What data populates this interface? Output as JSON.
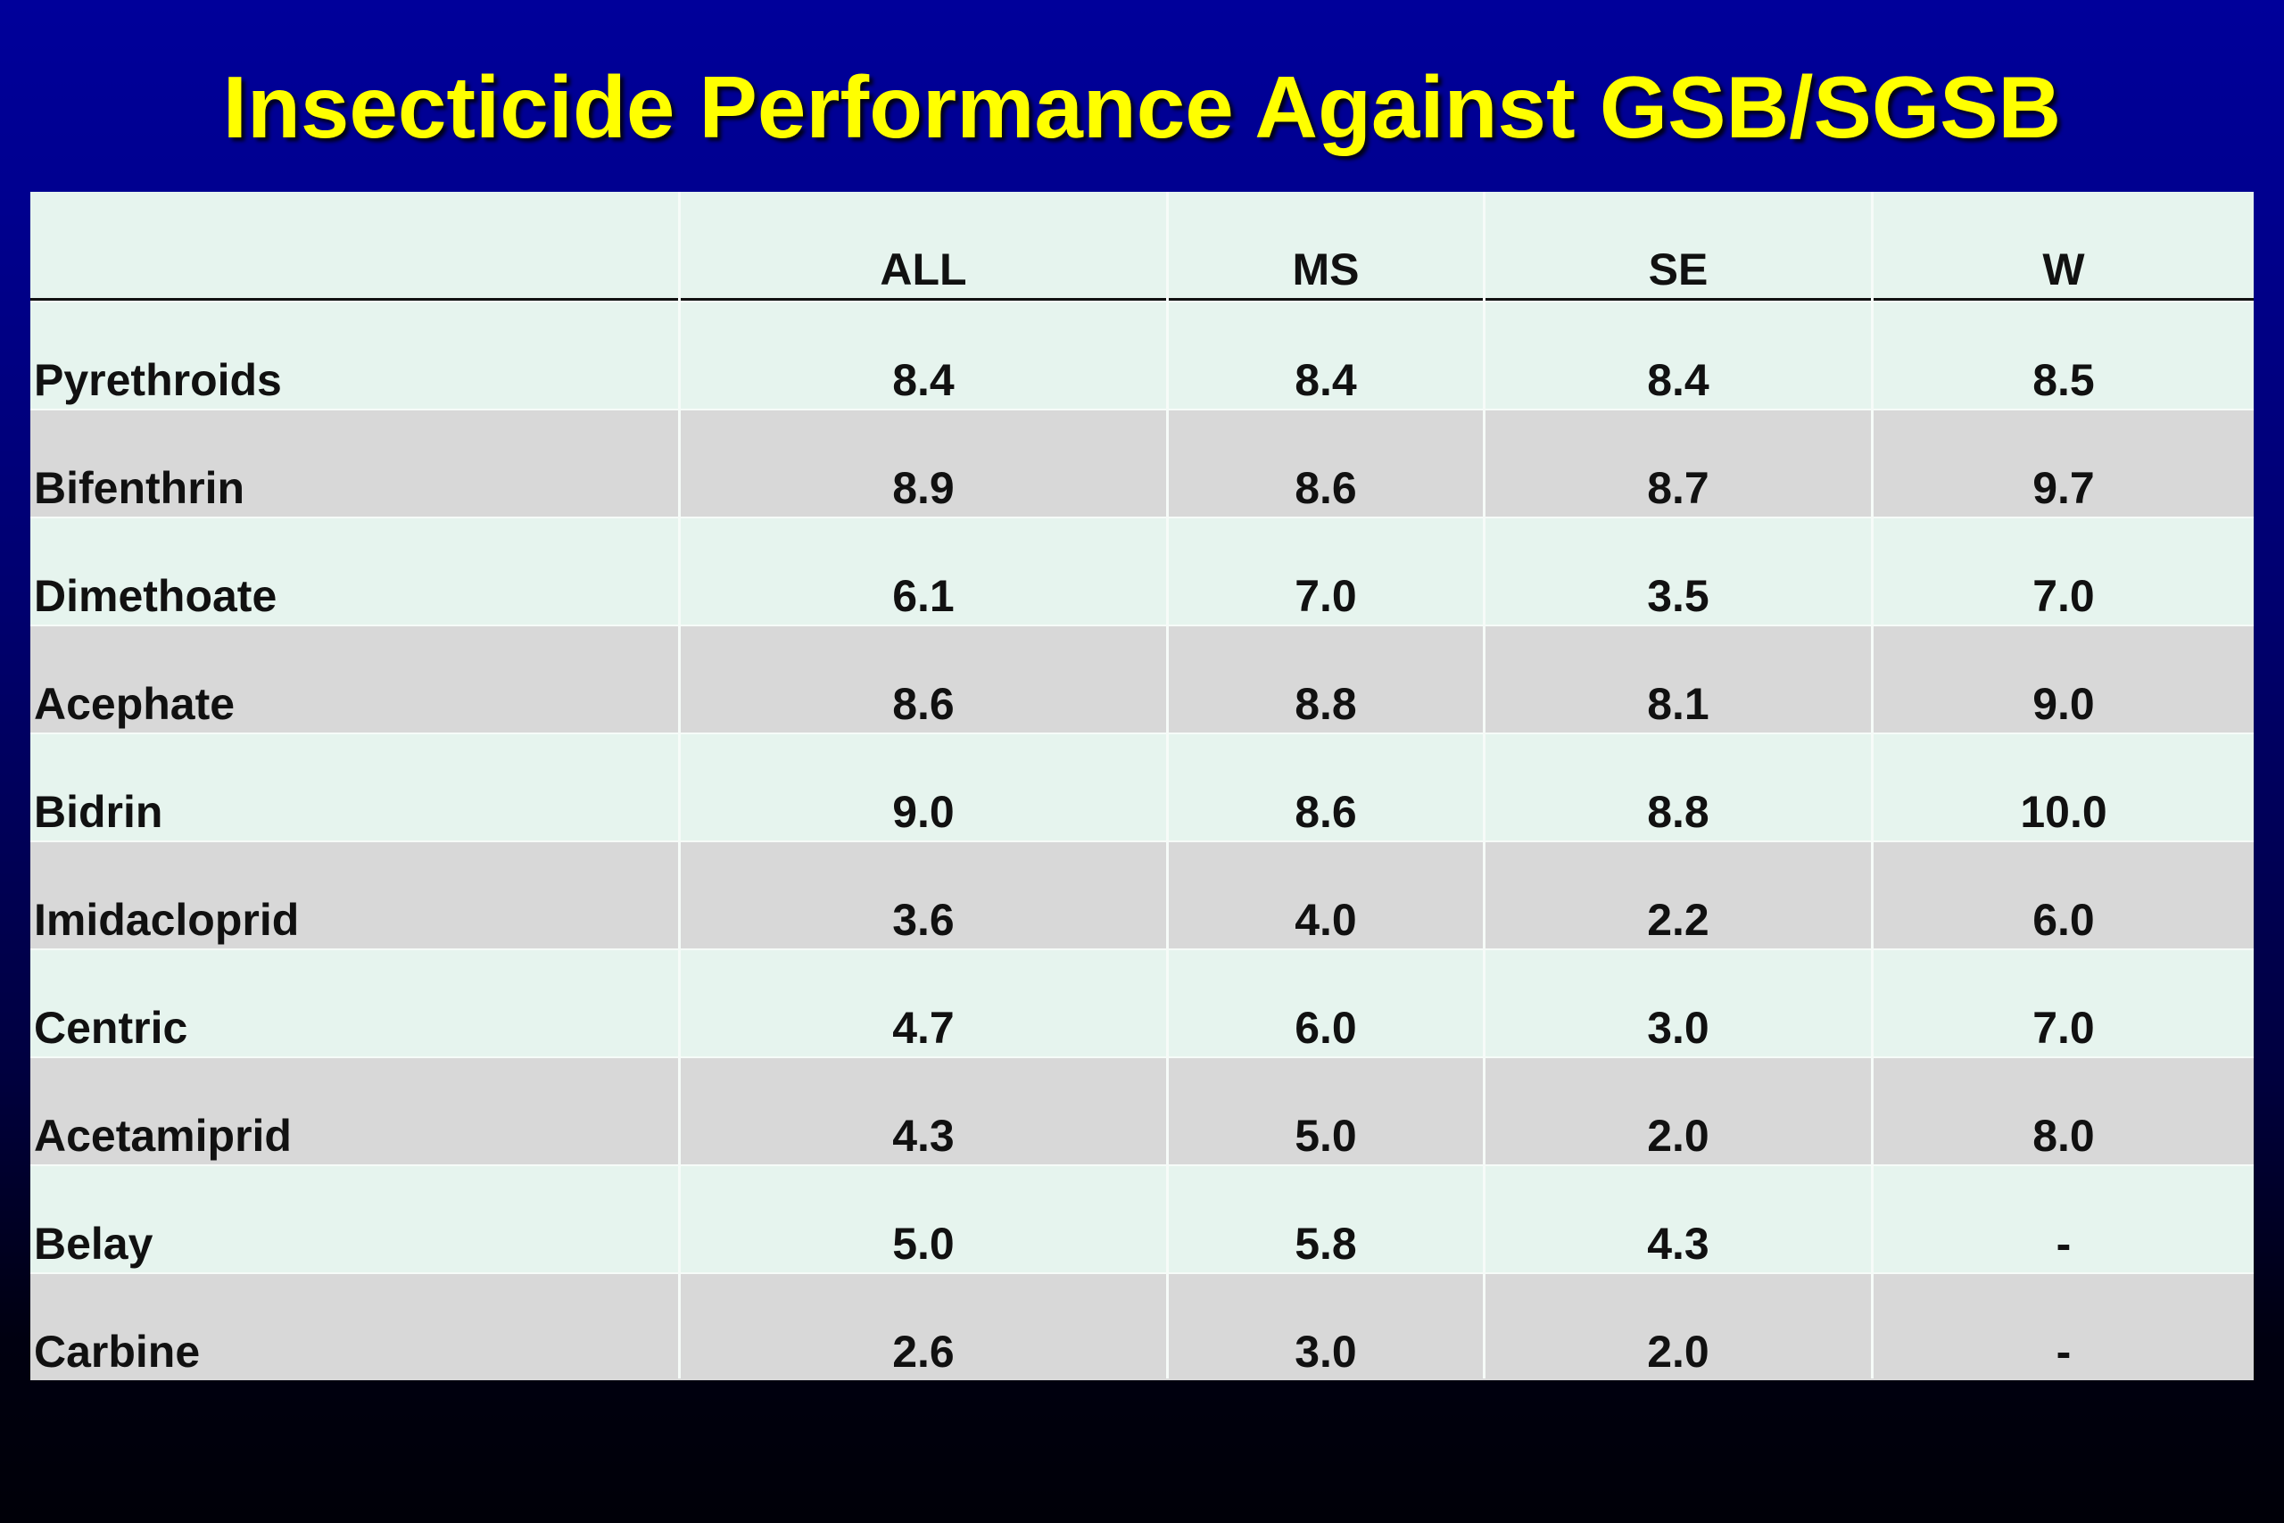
{
  "slide": {
    "title": "Insecticide Performance Against GSB/SGSB"
  },
  "table": {
    "columns": [
      "",
      "ALL",
      "MS",
      "SE",
      "W"
    ],
    "rows": [
      {
        "name": "Pyrethroids",
        "values": [
          "8.4",
          "8.4",
          "8.4",
          "8.5"
        ]
      },
      {
        "name": "Bifenthrin",
        "values": [
          "8.9",
          "8.6",
          "8.7",
          "9.7"
        ]
      },
      {
        "name": "Dimethoate",
        "values": [
          "6.1",
          "7.0",
          "3.5",
          "7.0"
        ]
      },
      {
        "name": "Acephate",
        "values": [
          "8.6",
          "8.8",
          "8.1",
          "9.0"
        ]
      },
      {
        "name": "Bidrin",
        "values": [
          "9.0",
          "8.6",
          "8.8",
          "10.0"
        ]
      },
      {
        "name": "Imidacloprid",
        "values": [
          "3.6",
          "4.0",
          "2.2",
          "6.0"
        ]
      },
      {
        "name": "Centric",
        "values": [
          "4.7",
          "6.0",
          "3.0",
          "7.0"
        ]
      },
      {
        "name": "Acetamiprid",
        "values": [
          "4.3",
          "5.0",
          "2.0",
          "8.0"
        ]
      },
      {
        "name": "Belay",
        "values": [
          "5.0",
          "5.8",
          "4.3",
          "-"
        ]
      },
      {
        "name": "Carbine",
        "values": [
          "2.6",
          "3.0",
          "2.0",
          "-"
        ]
      }
    ]
  },
  "colors": {
    "title": "#ffff00",
    "background_top": "#00009a",
    "background_bottom": "#000008",
    "row_light": "#e6f4ee",
    "row_dark": "#d8d8d8"
  }
}
